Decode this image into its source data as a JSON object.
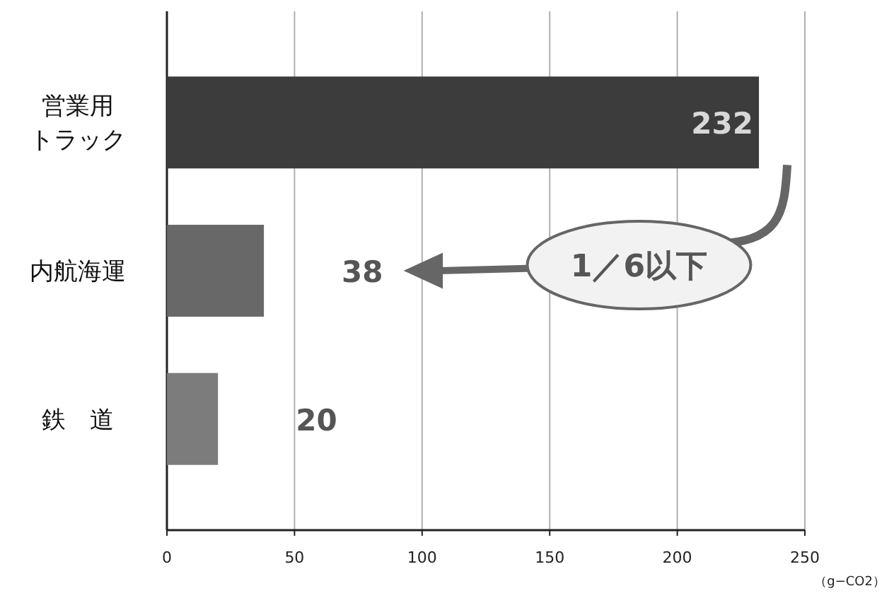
{
  "chart_data": {
    "type": "bar",
    "orientation": "horizontal",
    "categories": [
      "営業用トラック",
      "内航海運",
      "鉄　道"
    ],
    "values": [
      232,
      38,
      20
    ],
    "colors": [
      "#3c3c3c",
      "#686868",
      "#7c7c7c"
    ],
    "value_labels": [
      "232",
      "38",
      "20"
    ],
    "xlim": [
      0,
      250
    ],
    "xticks": [
      0,
      50,
      100,
      150,
      200,
      250
    ],
    "xlabel": "（g−CO2）",
    "grid": "x",
    "annotations": [
      "1／6以下"
    ]
  }
}
